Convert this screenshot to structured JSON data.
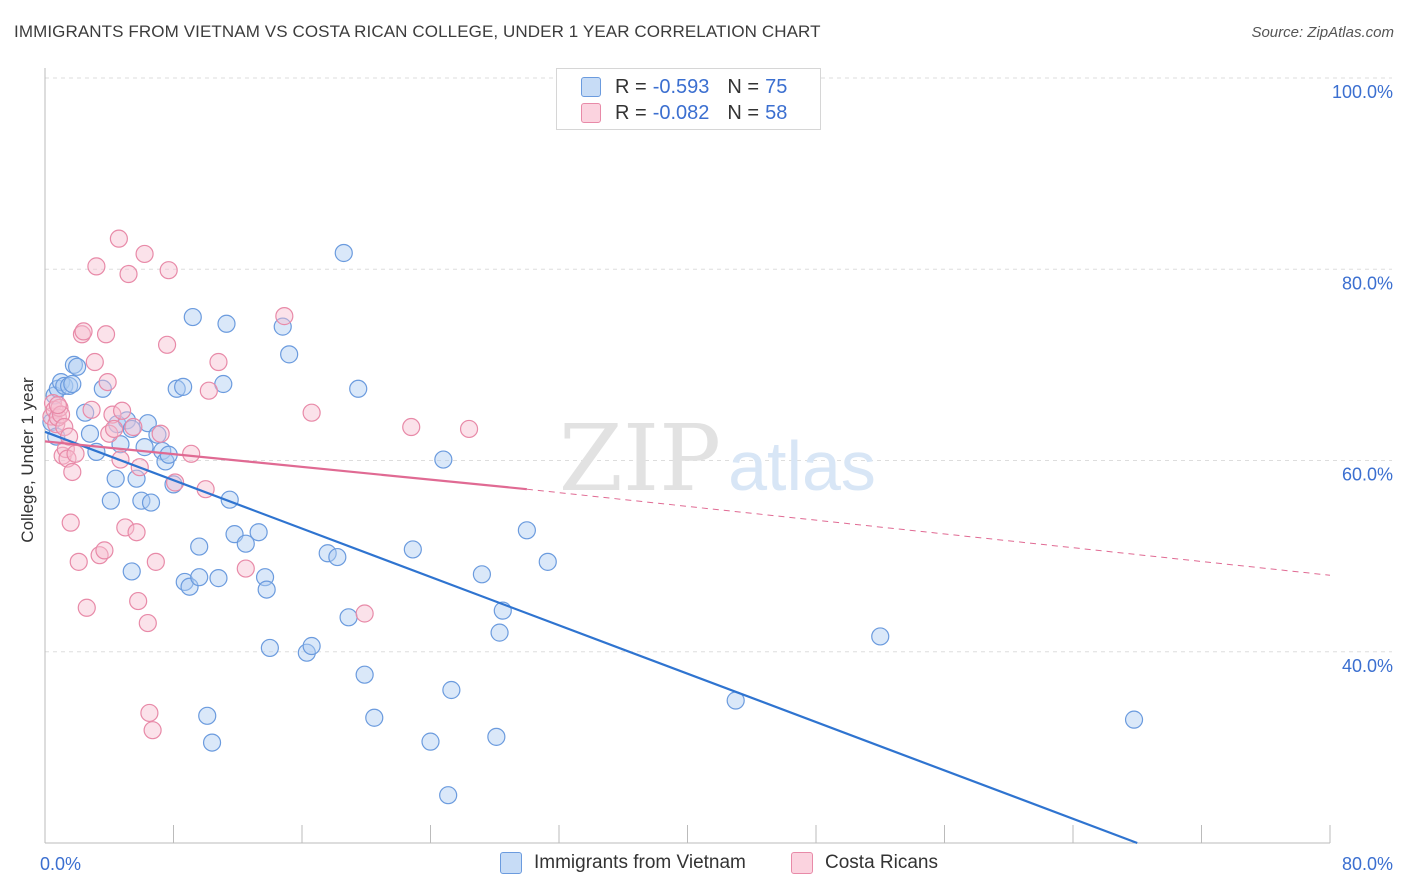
{
  "header": {
    "title": "IMMIGRANTS FROM VIETNAM VS COSTA RICAN COLLEGE, UNDER 1 YEAR CORRELATION CHART",
    "source": "Source: ZipAtlas.com"
  },
  "watermark": {
    "zip": "ZIP",
    "atlas": "atlas"
  },
  "legend_top": {
    "rows": [
      {
        "r_label": "R =",
        "r_value": "-0.593",
        "n_label": "N =",
        "n_value": "75"
      },
      {
        "r_label": "R =",
        "r_value": "-0.082",
        "n_label": "N =",
        "n_value": "58"
      }
    ]
  },
  "legend_bottom": {
    "items": [
      {
        "label": "Immigrants from Vietnam"
      },
      {
        "label": "Costa Ricans"
      }
    ]
  },
  "colors": {
    "blue_fill": "#aecbf2",
    "blue_stroke": "#6b9bde",
    "blue_line": "#2f74d0",
    "pink_fill": "#f6bfd0",
    "pink_stroke": "#e88aa8",
    "pink_line": "#e06a93",
    "tick_text": "#3b6fd0",
    "grid": "#dddddd"
  },
  "chart_data": {
    "type": "scatter",
    "title": "IMMIGRANTS FROM VIETNAM VS COSTA RICAN COLLEGE, UNDER 1 YEAR CORRELATION CHART",
    "xlabel": "",
    "ylabel": "College, Under 1 year",
    "xlim": [
      0,
      80
    ],
    "ylim": [
      20,
      100
    ],
    "x_tick_labels": [
      {
        "value": 0,
        "label": "0.0%"
      },
      {
        "value": 80,
        "label": "80.0%"
      }
    ],
    "y_tick_labels": [
      {
        "value": 40,
        "label": "40.0%"
      },
      {
        "value": 60,
        "label": "60.0%"
      },
      {
        "value": 80,
        "label": "80.0%"
      },
      {
        "value": 100,
        "label": "100.0%"
      }
    ],
    "grid": true,
    "legend": "top-center",
    "series": [
      {
        "name": "Immigrants from Vietnam",
        "color": "#6b9bde",
        "points": [
          [
            0.4,
            64.0
          ],
          [
            0.6,
            66.8
          ],
          [
            0.8,
            67.5
          ],
          [
            1.0,
            68.2
          ],
          [
            1.2,
            67.8
          ],
          [
            1.5,
            67.8
          ],
          [
            1.7,
            68.0
          ],
          [
            1.8,
            70.0
          ],
          [
            2.0,
            69.8
          ],
          [
            2.5,
            65.0
          ],
          [
            2.8,
            62.8
          ],
          [
            3.2,
            60.9
          ],
          [
            3.6,
            67.5
          ],
          [
            4.1,
            55.8
          ],
          [
            4.4,
            58.1
          ],
          [
            4.5,
            63.8
          ],
          [
            4.7,
            61.7
          ],
          [
            5.1,
            64.2
          ],
          [
            5.4,
            63.3
          ],
          [
            5.4,
            48.4
          ],
          [
            5.7,
            58.1
          ],
          [
            6.0,
            55.8
          ],
          [
            6.2,
            61.4
          ],
          [
            6.4,
            63.9
          ],
          [
            6.6,
            55.6
          ],
          [
            7.0,
            62.7
          ],
          [
            7.3,
            61.0
          ],
          [
            7.5,
            59.9
          ],
          [
            7.7,
            60.6
          ],
          [
            8.0,
            57.5
          ],
          [
            8.2,
            67.5
          ],
          [
            8.6,
            67.7
          ],
          [
            8.7,
            47.3
          ],
          [
            9.0,
            46.8
          ],
          [
            9.2,
            75.0
          ],
          [
            9.6,
            51.0
          ],
          [
            9.6,
            47.8
          ],
          [
            10.1,
            33.3
          ],
          [
            10.4,
            30.5
          ],
          [
            10.8,
            47.7
          ],
          [
            11.1,
            68.0
          ],
          [
            11.3,
            74.3
          ],
          [
            11.5,
            55.9
          ],
          [
            11.8,
            52.3
          ],
          [
            12.5,
            51.3
          ],
          [
            13.3,
            52.5
          ],
          [
            13.7,
            47.8
          ],
          [
            13.8,
            46.5
          ],
          [
            14.0,
            40.4
          ],
          [
            14.8,
            74.0
          ],
          [
            15.2,
            71.1
          ],
          [
            16.3,
            39.9
          ],
          [
            16.6,
            40.6
          ],
          [
            17.6,
            50.3
          ],
          [
            18.2,
            49.9
          ],
          [
            18.6,
            81.7
          ],
          [
            18.9,
            43.6
          ],
          [
            19.5,
            67.5
          ],
          [
            19.9,
            37.6
          ],
          [
            20.5,
            33.1
          ],
          [
            22.9,
            50.7
          ],
          [
            24.0,
            30.6
          ],
          [
            24.8,
            60.1
          ],
          [
            25.1,
            25.0
          ],
          [
            25.3,
            36.0
          ],
          [
            27.2,
            48.1
          ],
          [
            28.1,
            31.1
          ],
          [
            28.3,
            42.0
          ],
          [
            28.5,
            44.3
          ],
          [
            30.0,
            52.7
          ],
          [
            31.3,
            49.4
          ],
          [
            43.0,
            34.9
          ],
          [
            52.0,
            41.6
          ],
          [
            67.8,
            32.9
          ],
          [
            0.7,
            62.5
          ]
        ]
      },
      {
        "name": "Costa Ricans",
        "color": "#e88aa8",
        "points": [
          [
            0.4,
            64.6
          ],
          [
            0.5,
            66.0
          ],
          [
            0.6,
            65.3
          ],
          [
            0.7,
            63.8
          ],
          [
            0.8,
            64.5
          ],
          [
            0.9,
            65.5
          ],
          [
            1.0,
            64.8
          ],
          [
            1.1,
            60.5
          ],
          [
            1.2,
            63.5
          ],
          [
            1.3,
            61.2
          ],
          [
            1.4,
            60.2
          ],
          [
            1.5,
            62.5
          ],
          [
            1.6,
            53.5
          ],
          [
            1.7,
            58.8
          ],
          [
            1.9,
            60.7
          ],
          [
            2.1,
            49.4
          ],
          [
            2.3,
            73.2
          ],
          [
            2.4,
            73.5
          ],
          [
            2.6,
            44.6
          ],
          [
            2.9,
            65.3
          ],
          [
            3.1,
            70.3
          ],
          [
            3.2,
            80.3
          ],
          [
            3.4,
            50.1
          ],
          [
            3.7,
            50.6
          ],
          [
            3.8,
            73.2
          ],
          [
            3.9,
            68.2
          ],
          [
            4.0,
            62.8
          ],
          [
            4.2,
            64.8
          ],
          [
            4.3,
            63.3
          ],
          [
            4.6,
            83.2
          ],
          [
            4.7,
            60.1
          ],
          [
            4.8,
            65.2
          ],
          [
            5.0,
            53.0
          ],
          [
            5.2,
            79.5
          ],
          [
            5.5,
            63.5
          ],
          [
            5.7,
            52.5
          ],
          [
            5.8,
            45.3
          ],
          [
            5.9,
            59.3
          ],
          [
            6.2,
            81.6
          ],
          [
            6.4,
            43.0
          ],
          [
            6.5,
            33.6
          ],
          [
            6.7,
            31.8
          ],
          [
            6.9,
            49.4
          ],
          [
            7.2,
            62.8
          ],
          [
            7.6,
            72.1
          ],
          [
            7.7,
            79.9
          ],
          [
            8.1,
            57.7
          ],
          [
            9.1,
            60.7
          ],
          [
            10.0,
            57.0
          ],
          [
            10.2,
            67.3
          ],
          [
            10.8,
            70.3
          ],
          [
            12.5,
            48.7
          ],
          [
            14.9,
            75.1
          ],
          [
            16.6,
            65.0
          ],
          [
            19.9,
            44.0
          ],
          [
            22.8,
            63.5
          ],
          [
            26.4,
            63.3
          ],
          [
            0.8,
            65.8
          ]
        ]
      }
    ],
    "trendlines": [
      {
        "series": "Immigrants from Vietnam",
        "x": [
          0,
          68
        ],
        "y": [
          63.0,
          20.0
        ],
        "style": "solid"
      },
      {
        "series": "Costa Ricans",
        "x": [
          0,
          30
        ],
        "y": [
          62.0,
          57.0
        ],
        "style": "solid"
      },
      {
        "series": "Costa Ricans",
        "x": [
          30,
          80
        ],
        "y": [
          57.0,
          48.0
        ],
        "style": "dashed"
      }
    ]
  }
}
